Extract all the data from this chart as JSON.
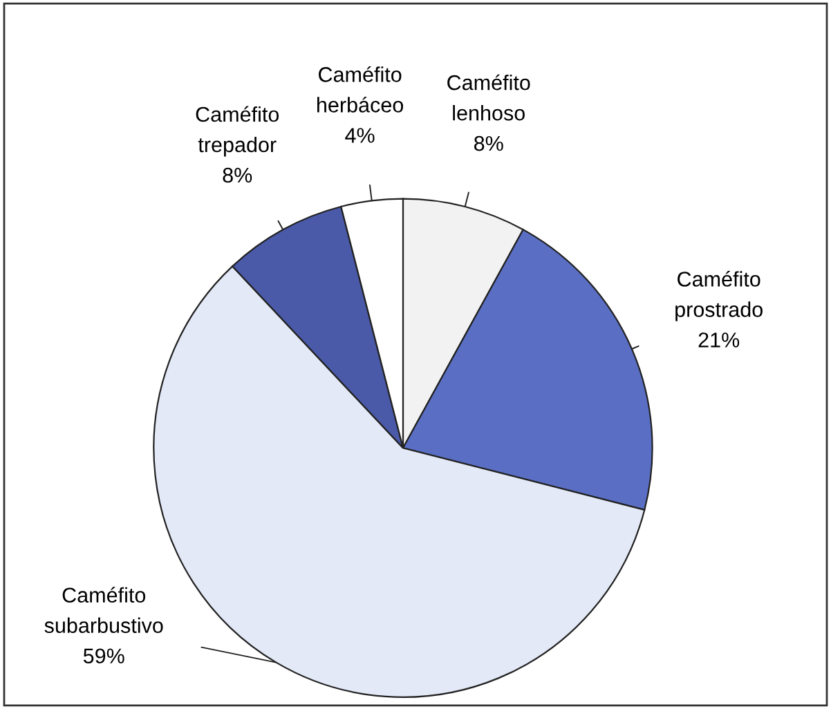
{
  "chart_data": {
    "type": "pie",
    "categories": [
      "Caméfito lenhoso",
      "Caméfito prostrado",
      "Caméfito subarbustivo",
      "Caméfito trepador",
      "Caméfito herbáceo"
    ],
    "values": [
      8,
      21,
      59,
      8,
      4
    ],
    "colors": [
      "#f2f2f2",
      "#5a6fc4",
      "#e3e9f7",
      "#4a5aa8",
      "#ffffff"
    ],
    "value_labels": [
      "8%",
      "21%",
      "59%",
      "8%",
      "4%"
    ],
    "legend": false
  }
}
